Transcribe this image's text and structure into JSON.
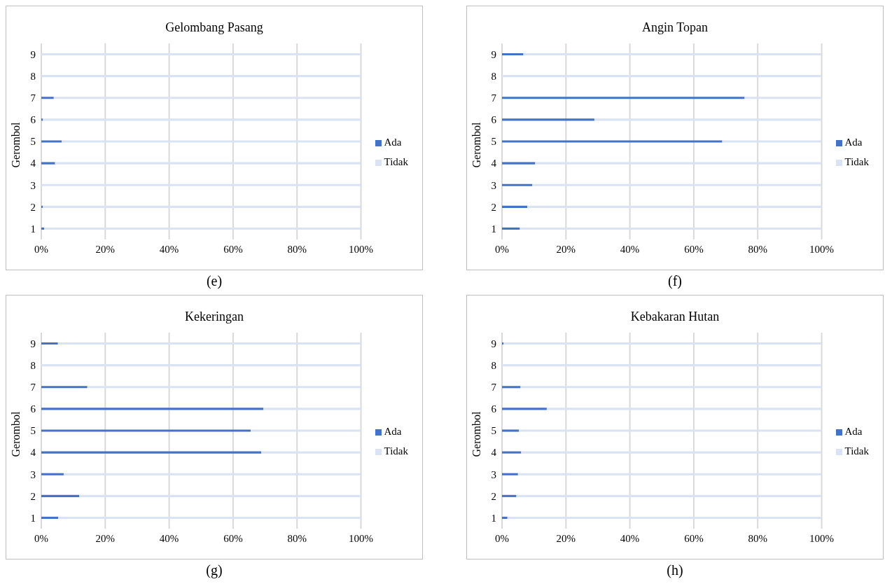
{
  "chart_data": [
    {
      "type": "bar",
      "orientation": "horizontal",
      "stacked": true,
      "title": "Gelombang Pasang",
      "ylabel": "Gerombol",
      "categories": [
        "9",
        "8",
        "7",
        "6",
        "5",
        "4",
        "3",
        "2",
        "1"
      ],
      "series": [
        {
          "name": "Ada",
          "color": "#4472c4",
          "values": [
            0,
            0,
            3.9,
            0.5,
            6.4,
            4.3,
            0,
            0.5,
            0.9
          ]
        },
        {
          "name": "Tidak",
          "color": "#dae3f3",
          "values": [
            100,
            100,
            96.1,
            99.5,
            93.6,
            95.7,
            100,
            99.5,
            99.1
          ]
        }
      ],
      "xlim": [
        0,
        100
      ],
      "xticks": [
        {
          "value": 0,
          "label": "0%"
        },
        {
          "value": 20,
          "label": "20%"
        },
        {
          "value": 40,
          "label": "40%"
        },
        {
          "value": 60,
          "label": "60%"
        },
        {
          "value": 80,
          "label": "80%"
        },
        {
          "value": 100,
          "label": "100%"
        }
      ],
      "grid": "x",
      "legend": "right",
      "annotations": [
        "(e)"
      ]
    },
    {
      "type": "bar",
      "orientation": "horizontal",
      "stacked": true,
      "title": "Angin Topan",
      "ylabel": "Gerombol",
      "categories": [
        "9",
        "8",
        "7",
        "6",
        "5",
        "4",
        "3",
        "2",
        "1"
      ],
      "series": [
        {
          "name": "Ada",
          "color": "#4472c4",
          "values": [
            6.7,
            0,
            75.9,
            28.9,
            68.9,
            10.4,
            9.5,
            7.9,
            5.6
          ]
        },
        {
          "name": "Tidak",
          "color": "#dae3f3",
          "values": [
            93.3,
            100,
            24.1,
            71.1,
            31.1,
            89.6,
            90.5,
            92.1,
            94.4
          ]
        }
      ],
      "xlim": [
        0,
        100
      ],
      "xticks": [
        {
          "value": 0,
          "label": "0%"
        },
        {
          "value": 20,
          "label": "20%"
        },
        {
          "value": 40,
          "label": "40%"
        },
        {
          "value": 60,
          "label": "60%"
        },
        {
          "value": 80,
          "label": "80%"
        },
        {
          "value": 100,
          "label": "100%"
        }
      ],
      "grid": "x",
      "legend": "right",
      "annotations": [
        "(f)"
      ]
    },
    {
      "type": "bar",
      "orientation": "horizontal",
      "stacked": true,
      "title": "Kekeringan",
      "ylabel": "Gerombol",
      "categories": [
        "9",
        "8",
        "7",
        "6",
        "5",
        "4",
        "3",
        "2",
        "1"
      ],
      "series": [
        {
          "name": "Ada",
          "color": "#4472c4",
          "values": [
            5.2,
            0,
            14.4,
            69.5,
            65.5,
            68.8,
            7,
            11.9,
            5.3
          ]
        },
        {
          "name": "Tidak",
          "color": "#dae3f3",
          "values": [
            94.8,
            100,
            85.6,
            30.5,
            34.5,
            31.2,
            93,
            88.1,
            94.7
          ]
        }
      ],
      "xlim": [
        0,
        100
      ],
      "xticks": [
        {
          "value": 0,
          "label": "0%"
        },
        {
          "value": 20,
          "label": "20%"
        },
        {
          "value": 40,
          "label": "40%"
        },
        {
          "value": 60,
          "label": "60%"
        },
        {
          "value": 80,
          "label": "80%"
        },
        {
          "value": 100,
          "label": "100%"
        }
      ],
      "grid": "x",
      "legend": "right",
      "annotations": [
        "(g)"
      ]
    },
    {
      "type": "bar",
      "orientation": "horizontal",
      "stacked": true,
      "title": "Kebakaran Hutan",
      "ylabel": "Gerombol",
      "categories": [
        "9",
        "8",
        "7",
        "6",
        "5",
        "4",
        "3",
        "2",
        "1"
      ],
      "series": [
        {
          "name": "Ada",
          "color": "#4472c4",
          "values": [
            0.5,
            0,
            5.8,
            14,
            5.3,
            6,
            5,
            4.5,
            1.7
          ]
        },
        {
          "name": "Tidak",
          "color": "#dae3f3",
          "values": [
            99.5,
            100,
            94.2,
            86,
            94.7,
            94,
            95,
            95.5,
            98.3
          ]
        }
      ],
      "xlim": [
        0,
        100
      ],
      "xticks": [
        {
          "value": 0,
          "label": "0%"
        },
        {
          "value": 20,
          "label": "20%"
        },
        {
          "value": 40,
          "label": "40%"
        },
        {
          "value": 60,
          "label": "60%"
        },
        {
          "value": 80,
          "label": "80%"
        },
        {
          "value": 100,
          "label": "100%"
        }
      ],
      "grid": "x",
      "legend": "right",
      "annotations": [
        "(h)"
      ]
    }
  ]
}
